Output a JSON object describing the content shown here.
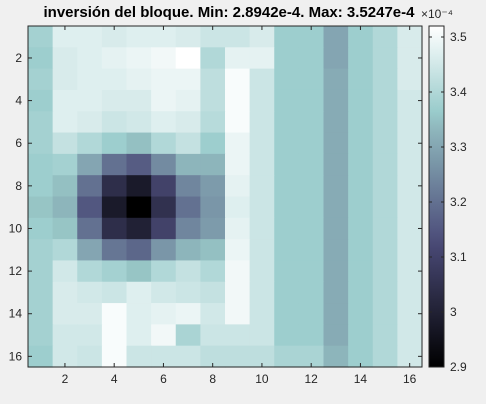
{
  "chart_data": {
    "type": "heatmap",
    "title": "inversión del bloque. Min: 2.8942e-4. Max: 3.5247e-4",
    "xlabel": "",
    "ylabel": "",
    "x_ticks": [
      "2",
      "4",
      "6",
      "8",
      "10",
      "12",
      "14",
      "16"
    ],
    "y_ticks": [
      "2",
      "4",
      "6",
      "8",
      "10",
      "12",
      "14",
      "16"
    ],
    "xlim": [
      0.5,
      16.5
    ],
    "ylim": [
      0.5,
      16.5
    ],
    "y_direction": "top-to-bottom",
    "colormap": "bone",
    "colorbar": {
      "limits": [
        2.9,
        3.52
      ],
      "tick_labels": [
        "2.9",
        "3",
        "3.1",
        "3.2",
        "3.3",
        "3.4",
        "3.5"
      ],
      "tick_values": [
        2.9,
        3.0,
        3.1,
        3.2,
        3.3,
        3.4,
        3.5
      ],
      "exponent_label": "×10⁻⁴"
    },
    "values": [
      [
        3.38,
        3.47,
        3.47,
        3.46,
        3.47,
        3.47,
        3.46,
        3.44,
        3.44,
        3.46,
        3.37,
        3.37,
        3.3,
        3.37,
        3.4,
        3.46
      ],
      [
        3.37,
        3.46,
        3.47,
        3.48,
        3.49,
        3.5,
        3.52,
        3.4,
        3.48,
        3.48,
        3.37,
        3.37,
        3.3,
        3.37,
        3.4,
        3.46
      ],
      [
        3.38,
        3.46,
        3.47,
        3.47,
        3.48,
        3.49,
        3.49,
        3.42,
        3.51,
        3.44,
        3.37,
        3.37,
        3.31,
        3.37,
        3.4,
        3.46
      ],
      [
        3.37,
        3.47,
        3.47,
        3.46,
        3.46,
        3.49,
        3.48,
        3.42,
        3.51,
        3.44,
        3.37,
        3.37,
        3.31,
        3.37,
        3.4,
        3.45
      ],
      [
        3.38,
        3.47,
        3.46,
        3.44,
        3.45,
        3.47,
        3.46,
        3.41,
        3.51,
        3.44,
        3.37,
        3.37,
        3.31,
        3.37,
        3.4,
        3.45
      ],
      [
        3.38,
        3.43,
        3.4,
        3.37,
        3.35,
        3.4,
        3.43,
        3.37,
        3.49,
        3.44,
        3.37,
        3.37,
        3.31,
        3.37,
        3.4,
        3.45
      ],
      [
        3.37,
        3.38,
        3.3,
        3.2,
        3.16,
        3.25,
        3.33,
        3.33,
        3.49,
        3.44,
        3.37,
        3.37,
        3.31,
        3.37,
        3.4,
        3.45
      ],
      [
        3.37,
        3.35,
        3.2,
        3.04,
        2.98,
        3.1,
        3.24,
        3.28,
        3.48,
        3.44,
        3.37,
        3.37,
        3.31,
        3.37,
        3.4,
        3.45
      ],
      [
        3.36,
        3.33,
        3.15,
        2.98,
        2.89,
        3.05,
        3.2,
        3.27,
        3.47,
        3.44,
        3.37,
        3.37,
        3.31,
        3.37,
        3.4,
        3.45
      ],
      [
        3.37,
        3.36,
        3.2,
        3.04,
        3.0,
        3.1,
        3.24,
        3.28,
        3.48,
        3.44,
        3.37,
        3.37,
        3.31,
        3.37,
        3.4,
        3.45
      ],
      [
        3.38,
        3.4,
        3.3,
        3.21,
        3.18,
        3.27,
        3.33,
        3.35,
        3.49,
        3.44,
        3.37,
        3.37,
        3.31,
        3.37,
        3.4,
        3.45
      ],
      [
        3.38,
        3.45,
        3.4,
        3.38,
        3.36,
        3.4,
        3.43,
        3.4,
        3.5,
        3.44,
        3.37,
        3.37,
        3.31,
        3.37,
        3.4,
        3.45
      ],
      [
        3.38,
        3.46,
        3.45,
        3.44,
        3.47,
        3.45,
        3.44,
        3.43,
        3.5,
        3.44,
        3.37,
        3.37,
        3.31,
        3.37,
        3.4,
        3.45
      ],
      [
        3.38,
        3.46,
        3.46,
        3.51,
        3.47,
        3.48,
        3.49,
        3.45,
        3.5,
        3.44,
        3.37,
        3.37,
        3.31,
        3.37,
        3.4,
        3.45
      ],
      [
        3.38,
        3.45,
        3.45,
        3.51,
        3.47,
        3.5,
        3.39,
        3.44,
        3.44,
        3.44,
        3.37,
        3.37,
        3.31,
        3.37,
        3.4,
        3.45
      ],
      [
        3.37,
        3.45,
        3.44,
        3.51,
        3.44,
        3.44,
        3.44,
        3.42,
        3.42,
        3.42,
        3.39,
        3.39,
        3.33,
        3.37,
        3.4,
        3.45
      ]
    ]
  }
}
